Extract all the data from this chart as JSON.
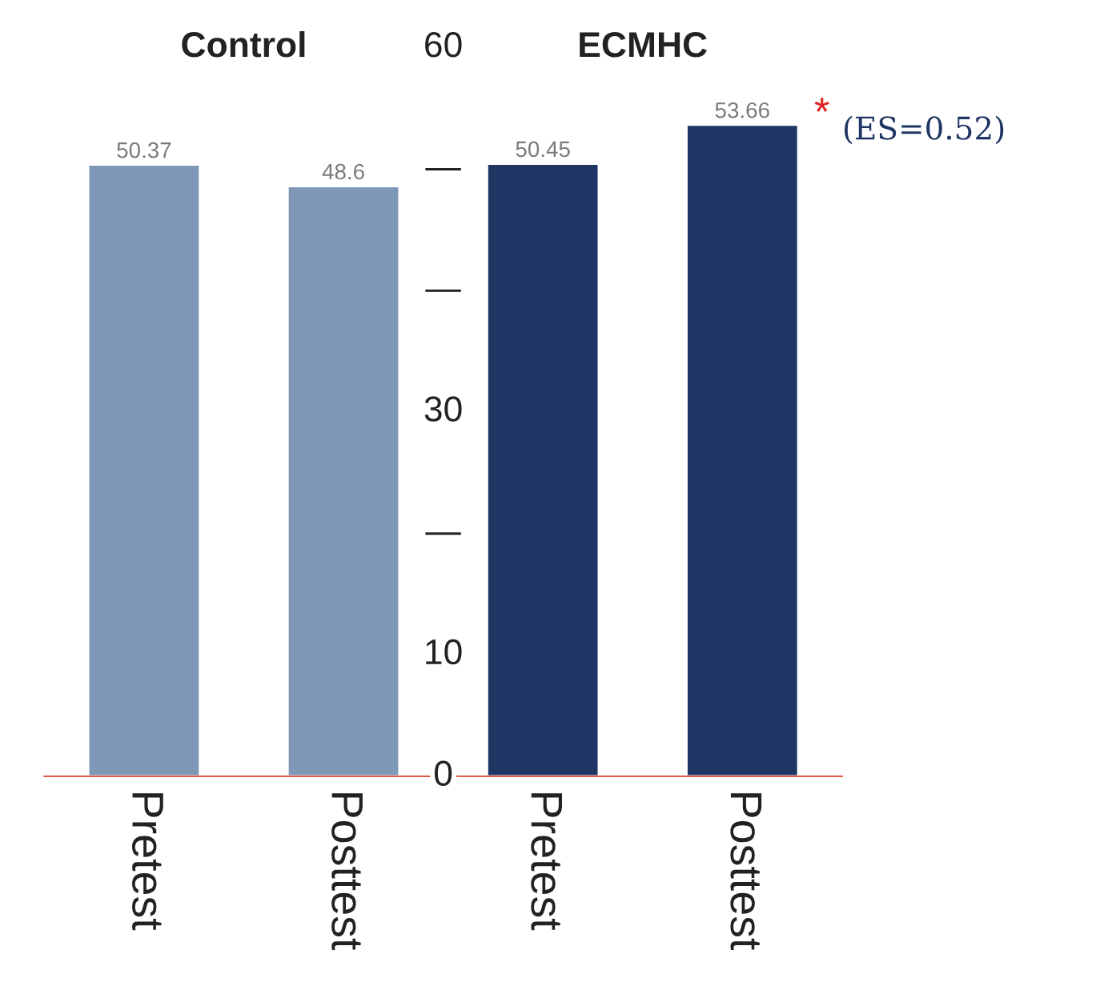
{
  "chart_data": {
    "type": "bar",
    "categories": [
      "Pretest",
      "Posttest",
      "Pretest",
      "Posttest"
    ],
    "values": [
      50.37,
      48.6,
      50.45,
      53.66
    ],
    "colors": [
      "#7f98b8",
      "#7f98b8",
      "#1f3664",
      "#1f3664"
    ],
    "data_labels": true,
    "ylim": [
      0,
      60
    ],
    "yticks": [
      0,
      10,
      {
        "value": 20,
        "label": "—"
      },
      30,
      {
        "value": 40,
        "label": "—"
      },
      {
        "value": 50,
        "label": "—"
      },
      60
    ],
    "annotations": [
      "Control",
      "ECMHC",
      "*",
      "(ES=0.52)"
    ],
    "grid": false,
    "legend": false
  }
}
